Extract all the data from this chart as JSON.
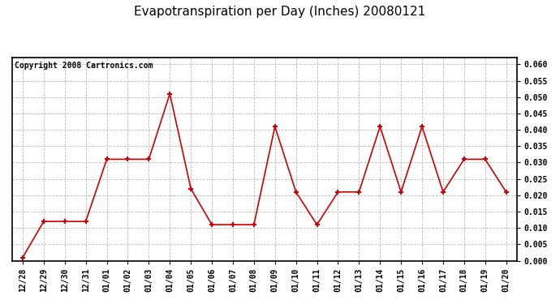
{
  "title": "Evapotranspiration per Day (Inches) 20080121",
  "copyright_text": "Copyright 2008 Cartronics.com",
  "labels": [
    "12/28",
    "12/29",
    "12/30",
    "12/31",
    "01/01",
    "01/02",
    "01/03",
    "01/04",
    "01/05",
    "01/06",
    "01/07",
    "01/08",
    "01/09",
    "01/10",
    "01/11",
    "01/12",
    "01/13",
    "01/14",
    "01/15",
    "01/16",
    "01/17",
    "01/18",
    "01/19",
    "01/20"
  ],
  "values": [
    0.001,
    0.012,
    0.012,
    0.012,
    0.031,
    0.031,
    0.031,
    0.051,
    0.022,
    0.011,
    0.011,
    0.011,
    0.041,
    0.021,
    0.011,
    0.021,
    0.021,
    0.041,
    0.021,
    0.041,
    0.021,
    0.031,
    0.031,
    0.021
  ],
  "line_color": "#cc0000",
  "marker": "+",
  "marker_size": 5,
  "background_color": "#ffffff",
  "plot_bg_color": "#ffffff",
  "grid_color": "#bbbbbb",
  "ylim": [
    0.0,
    0.062
  ],
  "yticks": [
    0.0,
    0.005,
    0.01,
    0.015,
    0.02,
    0.025,
    0.03,
    0.035,
    0.04,
    0.045,
    0.05,
    0.055,
    0.06
  ],
  "title_fontsize": 11,
  "copyright_fontsize": 7,
  "tick_fontsize": 7,
  "outer_bg": "#ffffff"
}
